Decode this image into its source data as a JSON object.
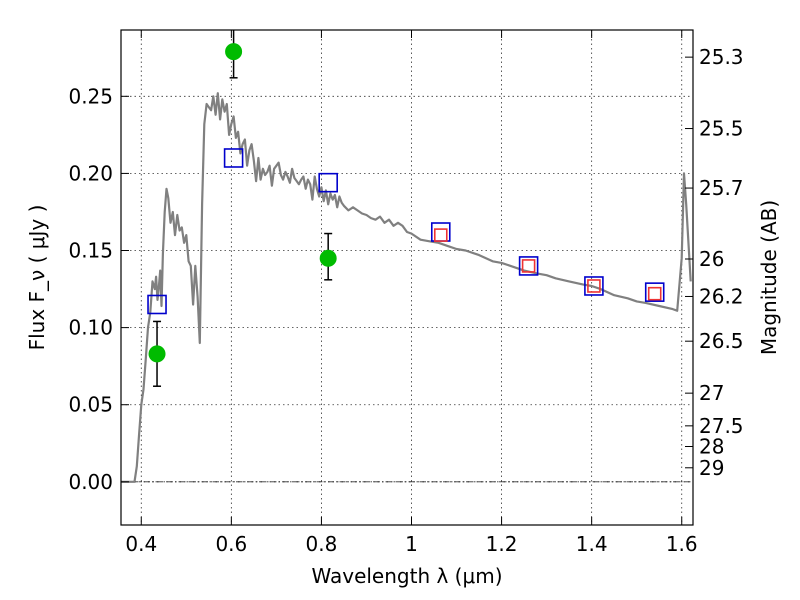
{
  "chart_data": {
    "type": "line",
    "title": "",
    "xlabel": "Wavelength  λ (μm)",
    "ylabel": "Flux  F_ν  ( μJy )",
    "ylabel_right": "Magnitude (AB)",
    "xlim": [
      0.355,
      1.625
    ],
    "ylim": [
      -0.028,
      0.293
    ],
    "grid": true,
    "x_ticks": [
      {
        "v": 0.4,
        "label": "0.4"
      },
      {
        "v": 0.6,
        "label": "0.6"
      },
      {
        "v": 0.8,
        "label": "0.8"
      },
      {
        "v": 1.0,
        "label": "1"
      },
      {
        "v": 1.2,
        "label": "1.2"
      },
      {
        "v": 1.4,
        "label": "1.4"
      },
      {
        "v": 1.6,
        "label": "1.6"
      }
    ],
    "y_ticks": [
      {
        "v": 0.0,
        "label": "0.00"
      },
      {
        "v": 0.05,
        "label": "0.05"
      },
      {
        "v": 0.1,
        "label": "0.10"
      },
      {
        "v": 0.15,
        "label": "0.15"
      },
      {
        "v": 0.2,
        "label": "0.20"
      },
      {
        "v": 0.25,
        "label": "0.25"
      }
    ],
    "mag_ticks": [
      {
        "label": "25.3",
        "flux": 0.2754
      },
      {
        "label": "25.5",
        "flux": 0.2291
      },
      {
        "label": "25.7",
        "flux": 0.1905
      },
      {
        "label": "26",
        "flux": 0.1445
      },
      {
        "label": "26.2",
        "flux": 0.1202
      },
      {
        "label": "26.5",
        "flux": 0.0912
      },
      {
        "label": "27",
        "flux": 0.0575
      },
      {
        "label": "27.5",
        "flux": 0.0363
      },
      {
        "label": "28",
        "flux": 0.0229
      },
      {
        "label": "29",
        "flux": 0.0091
      }
    ],
    "series": [
      {
        "kind": "line",
        "color": "#808080",
        "x": [
          0.355,
          0.385,
          0.39,
          0.395,
          0.4,
          0.405,
          0.41,
          0.415,
          0.42,
          0.425,
          0.43,
          0.433,
          0.436,
          0.439,
          0.442,
          0.445,
          0.448,
          0.452,
          0.456,
          0.46,
          0.465,
          0.47,
          0.475,
          0.48,
          0.485,
          0.49,
          0.495,
          0.5,
          0.505,
          0.51,
          0.515,
          0.52,
          0.525,
          0.53,
          0.535,
          0.54,
          0.545,
          0.55,
          0.555,
          0.56,
          0.565,
          0.57,
          0.575,
          0.58,
          0.585,
          0.59,
          0.595,
          0.6,
          0.605,
          0.61,
          0.615,
          0.62,
          0.625,
          0.63,
          0.635,
          0.64,
          0.645,
          0.65,
          0.655,
          0.66,
          0.665,
          0.67,
          0.675,
          0.68,
          0.685,
          0.69,
          0.695,
          0.7,
          0.705,
          0.71,
          0.715,
          0.72,
          0.725,
          0.73,
          0.735,
          0.74,
          0.745,
          0.75,
          0.755,
          0.76,
          0.765,
          0.77,
          0.775,
          0.78,
          0.785,
          0.79,
          0.795,
          0.8,
          0.805,
          0.81,
          0.815,
          0.82,
          0.825,
          0.83,
          0.835,
          0.84,
          0.845,
          0.85,
          0.86,
          0.87,
          0.88,
          0.89,
          0.9,
          0.91,
          0.92,
          0.93,
          0.94,
          0.95,
          0.96,
          0.97,
          0.98,
          0.99,
          1.0,
          1.02,
          1.04,
          1.06,
          1.08,
          1.1,
          1.12,
          1.15,
          1.18,
          1.2,
          1.22,
          1.25,
          1.28,
          1.3,
          1.32,
          1.35,
          1.38,
          1.4,
          1.42,
          1.45,
          1.48,
          1.5,
          1.52,
          1.55,
          1.58,
          1.59,
          1.6,
          1.605,
          1.61,
          1.62
        ],
        "y": [
          0.0,
          0.0,
          0.01,
          0.03,
          0.05,
          0.06,
          0.08,
          0.1,
          0.11,
          0.13,
          0.125,
          0.133,
          0.118,
          0.126,
          0.137,
          0.114,
          0.148,
          0.175,
          0.19,
          0.184,
          0.168,
          0.175,
          0.16,
          0.173,
          0.163,
          0.165,
          0.155,
          0.16,
          0.143,
          0.14,
          0.115,
          0.14,
          0.12,
          0.09,
          0.18,
          0.232,
          0.245,
          0.243,
          0.241,
          0.25,
          0.238,
          0.252,
          0.235,
          0.248,
          0.24,
          0.245,
          0.225,
          0.232,
          0.237,
          0.223,
          0.227,
          0.213,
          0.219,
          0.222,
          0.205,
          0.215,
          0.219,
          0.208,
          0.195,
          0.21,
          0.196,
          0.203,
          0.199,
          0.201,
          0.205,
          0.192,
          0.203,
          0.205,
          0.207,
          0.199,
          0.196,
          0.201,
          0.198,
          0.194,
          0.203,
          0.197,
          0.195,
          0.193,
          0.196,
          0.198,
          0.19,
          0.196,
          0.193,
          0.183,
          0.198,
          0.19,
          0.185,
          0.191,
          0.182,
          0.189,
          0.18,
          0.187,
          0.183,
          0.186,
          0.178,
          0.185,
          0.181,
          0.179,
          0.176,
          0.178,
          0.176,
          0.174,
          0.173,
          0.171,
          0.17,
          0.172,
          0.168,
          0.17,
          0.166,
          0.168,
          0.166,
          0.162,
          0.161,
          0.157,
          0.156,
          0.155,
          0.153,
          0.151,
          0.15,
          0.147,
          0.143,
          0.142,
          0.14,
          0.137,
          0.135,
          0.134,
          0.132,
          0.13,
          0.128,
          0.127,
          0.125,
          0.121,
          0.119,
          0.117,
          0.116,
          0.114,
          0.112,
          0.111,
          0.145,
          0.2,
          0.18,
          0.13
        ]
      },
      {
        "kind": "markers",
        "marker": "open-square",
        "color": "#0000cc",
        "x": [
          0.435,
          0.605,
          0.815,
          1.065,
          1.26,
          1.405,
          1.54
        ],
        "y": [
          0.115,
          0.21,
          0.194,
          0.162,
          0.14,
          0.127,
          0.123
        ]
      },
      {
        "kind": "markers",
        "marker": "open-square-small",
        "color": "#ee3333",
        "x": [
          1.065,
          1.26,
          1.405,
          1.54
        ],
        "y": [
          0.16,
          0.14,
          0.127,
          0.122
        ]
      },
      {
        "kind": "errorbar",
        "marker": "filled-circle",
        "color": "#00bb00",
        "x": [
          0.435,
          0.605,
          0.815
        ],
        "y": [
          0.083,
          0.279,
          0.145
        ],
        "err_low": [
          0.021,
          0.017,
          0.014
        ],
        "err_high": [
          0.021,
          0.017,
          0.016
        ]
      }
    ]
  }
}
